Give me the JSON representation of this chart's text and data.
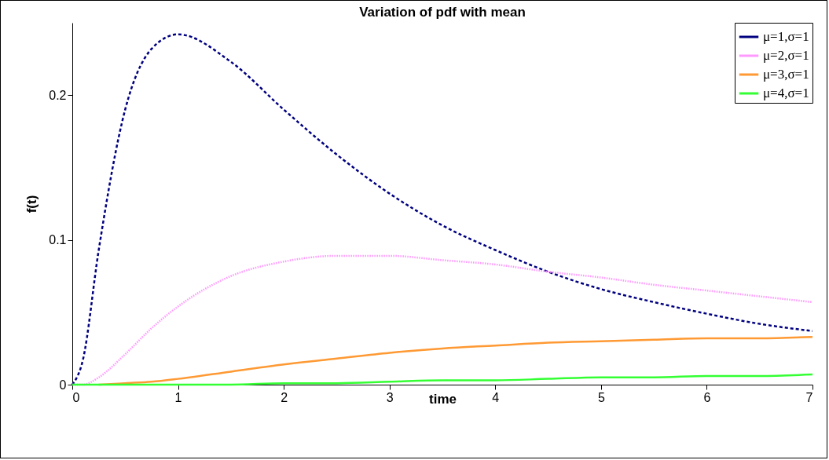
{
  "chart_data": {
    "type": "line",
    "title": "Variation of pdf with mean",
    "xlabel": "time",
    "ylabel": "f(t)",
    "xlim": [
      0,
      7
    ],
    "xticks": [
      0,
      1,
      2,
      3,
      4,
      5,
      6,
      7
    ],
    "ylim": [
      0,
      0.25
    ],
    "yticks": [
      0,
      0.1,
      0.2
    ],
    "grid": false,
    "legend": "top right",
    "marker": "none",
    "x": [
      0,
      0.1,
      0.25,
      0.5,
      0.75,
      1,
      1.5,
      2,
      2.5,
      3,
      3.5,
      4,
      4.5,
      5,
      5.5,
      6,
      6.5,
      7
    ],
    "series": [
      {
        "name": "μ=1,σ=1",
        "color": "#000080",
        "line_style": "dashed",
        "values": [
          0,
          0.017,
          0.093,
          0.19,
          0.232,
          0.242,
          0.223,
          0.19,
          0.159,
          0.132,
          0.11,
          0.093,
          0.078,
          0.066,
          0.057,
          0.049,
          0.042,
          0.037
        ]
      },
      {
        "name": "μ=2,σ=1",
        "color": "#ff99ff",
        "line_style": "dotted",
        "values": [
          0,
          0,
          0.005,
          0.021,
          0.039,
          0.054,
          0.075,
          0.085,
          0.089,
          0.089,
          0.086,
          0.083,
          0.078,
          0.074,
          0.069,
          0.065,
          0.061,
          0.057
        ]
      },
      {
        "name": "μ=3,σ=1",
        "color": "#ff9933",
        "line_style": "solid",
        "values": [
          null,
          null,
          0,
          0.001,
          0.002,
          0.004,
          0.009,
          0.014,
          0.018,
          0.022,
          0.025,
          0.027,
          0.029,
          0.03,
          0.031,
          0.032,
          0.032,
          0.033
        ]
      },
      {
        "name": "μ=4,σ=1",
        "color": "#33ff33",
        "line_style": "solid",
        "values": [
          0,
          0,
          0,
          0,
          0,
          0,
          0,
          0.001,
          0.001,
          0.002,
          0.003,
          0.003,
          0.004,
          0.005,
          0.005,
          0.006,
          0.006,
          0.007
        ]
      }
    ]
  }
}
